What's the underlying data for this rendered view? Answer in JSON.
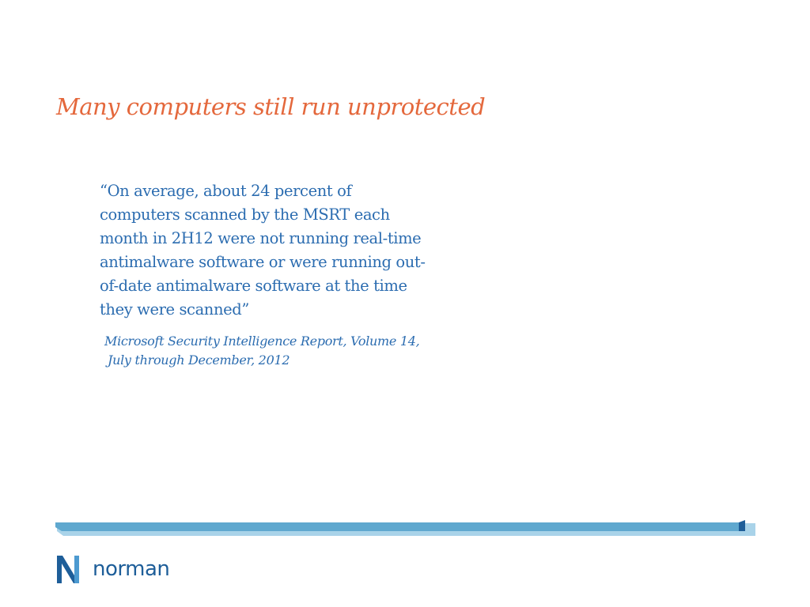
{
  "slide": {
    "title": "Many computers still run unprotected",
    "quote_lines": [
      "“On average, about 24 percent of",
      "computers scanned by the MSRT each",
      "month in 2H12 were not running real-time",
      "antimalware software or were running out-",
      "of-date antimalware software at the time",
      "they were scanned”"
    ],
    "source_lines": [
      "Microsoft Security Intelligence Report, Volume 14,",
      "July through December, 2012"
    ]
  },
  "footer": {
    "logo_text": "norman"
  },
  "colors": {
    "title": "#E4683C",
    "body_text": "#2B6CB0",
    "brand": "#1E5E99",
    "bar_light": "#A9D3E9",
    "bar_main": "#5FA8CF"
  }
}
